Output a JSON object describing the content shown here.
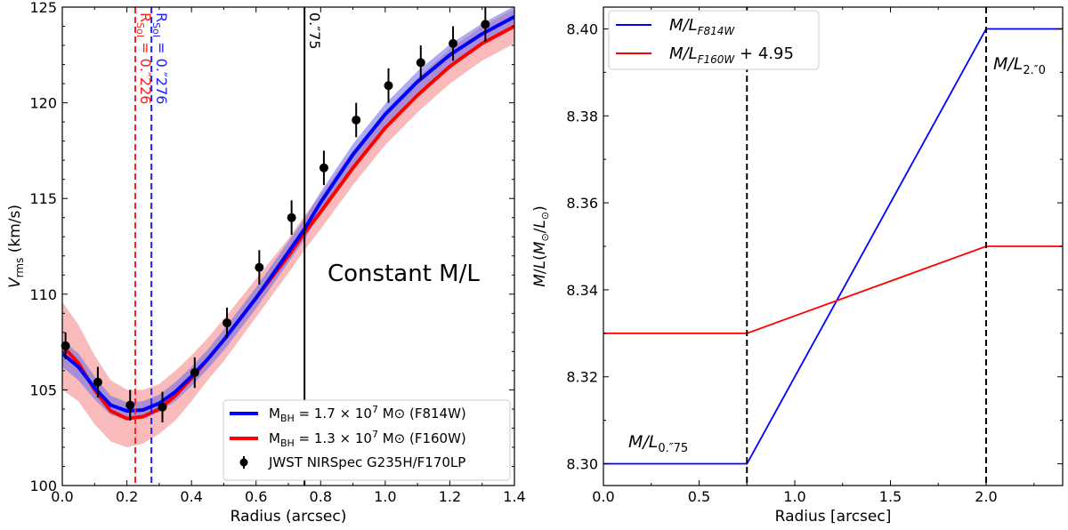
{
  "chart_data": [
    {
      "type": "line",
      "panel": "left",
      "title": "",
      "xlabel": "Radius (arcsec)",
      "ylabel": "V_rms (km/s)",
      "xlim": [
        0.0,
        1.4
      ],
      "ylim": [
        100,
        125
      ],
      "xticks": [
        "0.0",
        "0.2",
        "0.4",
        "0.6",
        "0.8",
        "1.0",
        "1.2",
        "1.4"
      ],
      "yticks": [
        "100",
        "105",
        "110",
        "115",
        "120",
        "125"
      ],
      "annotation": "Constant M/L",
      "vlines": [
        {
          "x": 0.226,
          "color": "#ff2020",
          "style": "dashed",
          "label_main": "R",
          "label_sub": "SoI",
          "label_rest": " = 0.″226"
        },
        {
          "x": 0.276,
          "color": "#2020ff",
          "style": "dashed",
          "label_main": "R",
          "label_sub": "SoI",
          "label_rest": " = 0.″276"
        },
        {
          "x": 0.75,
          "color": "#000000",
          "style": "solid",
          "label_main": "0.″75",
          "label_sub": "",
          "label_rest": ""
        }
      ],
      "series": [
        {
          "name": "F814W model",
          "color": "#0000ff",
          "band_color": "#6a6ae8",
          "x": [
            0.0,
            0.05,
            0.1,
            0.15,
            0.2,
            0.25,
            0.3,
            0.35,
            0.4,
            0.45,
            0.5,
            0.6,
            0.7,
            0.75,
            0.8,
            0.9,
            1.0,
            1.1,
            1.2,
            1.3,
            1.4
          ],
          "values": [
            106.9,
            106.2,
            105.1,
            104.2,
            103.9,
            103.95,
            104.3,
            104.9,
            105.7,
            106.6,
            107.6,
            109.8,
            112.2,
            113.4,
            114.8,
            117.3,
            119.4,
            121.1,
            122.5,
            123.6,
            124.5
          ],
          "band_halfwidth": [
            0.7,
            0.7,
            0.6,
            0.5,
            0.45,
            0.45,
            0.45,
            0.5,
            0.5,
            0.5,
            0.55,
            0.55,
            0.55,
            0.55,
            0.55,
            0.55,
            0.55,
            0.55,
            0.55,
            0.55,
            0.55
          ]
        },
        {
          "name": "F160W model",
          "color": "#ff0000",
          "band_color": "#f48c8c",
          "x": [
            0.0,
            0.05,
            0.1,
            0.15,
            0.2,
            0.25,
            0.3,
            0.35,
            0.4,
            0.45,
            0.5,
            0.6,
            0.7,
            0.75,
            0.8,
            0.9,
            1.0,
            1.1,
            1.2,
            1.3,
            1.4
          ],
          "values": [
            107.3,
            106.4,
            105.0,
            103.9,
            103.5,
            103.6,
            104.0,
            104.7,
            105.6,
            106.6,
            107.6,
            109.8,
            112.0,
            113.2,
            114.3,
            116.6,
            118.7,
            120.4,
            121.9,
            123.1,
            124.0
          ],
          "band_halfwidth": [
            2.3,
            2.0,
            1.8,
            1.6,
            1.5,
            1.4,
            1.3,
            1.3,
            1.2,
            1.1,
            1.1,
            1.0,
            0.9,
            0.9,
            0.9,
            0.9,
            0.9,
            0.9,
            0.9,
            0.9,
            0.9
          ]
        }
      ],
      "data_points": {
        "name": "JWST NIRSpec G235H/F170LP",
        "x": [
          0.01,
          0.11,
          0.21,
          0.31,
          0.41,
          0.51,
          0.61,
          0.71,
          0.81,
          0.91,
          1.01,
          1.11,
          1.21,
          1.31
        ],
        "values": [
          107.3,
          105.4,
          104.2,
          104.1,
          105.9,
          108.5,
          111.4,
          114.0,
          116.6,
          119.1,
          120.9,
          122.1,
          123.1,
          124.1
        ],
        "errors": [
          0.7,
          0.8,
          0.8,
          0.8,
          0.8,
          0.8,
          0.9,
          0.9,
          0.9,
          0.9,
          0.9,
          0.9,
          0.9,
          0.9
        ]
      },
      "legend": [
        {
          "kind": "line",
          "color": "#0000ff",
          "prefix": "M",
          "sub": "BH",
          "mid": " = 1.7 × 10",
          "sup": "7",
          "suffix": " M⊙ (F814W)"
        },
        {
          "kind": "line",
          "color": "#ff0000",
          "prefix": "M",
          "sub": "BH",
          "mid": " = 1.3 × 10",
          "sup": "7",
          "suffix": " M⊙ (F160W)"
        },
        {
          "kind": "point",
          "color": "#000000",
          "prefix": "JWST NIRSpec G235H/F170LP",
          "sub": "",
          "mid": "",
          "sup": "",
          "suffix": ""
        }
      ]
    },
    {
      "type": "line",
      "panel": "right",
      "title": "",
      "xlabel": "Radius [arcsec]",
      "ylabel": "M/L(M⊙/L⊙)",
      "xlim": [
        0.0,
        2.4
      ],
      "ylim": [
        8.295,
        8.405
      ],
      "xticks": [
        "0.0",
        "0.5",
        "1.0",
        "1.5",
        "2.0"
      ],
      "yticks": [
        "8.30",
        "8.32",
        "8.34",
        "8.36",
        "8.38",
        "8.40"
      ],
      "vlines": [
        {
          "x": 0.75,
          "color": "#000000",
          "style": "dashed"
        },
        {
          "x": 2.0,
          "color": "#000000",
          "style": "dashed"
        }
      ],
      "annotations": [
        {
          "text": "M/L",
          "sub": "0.″75",
          "at": "lower-left"
        },
        {
          "text": "M/L",
          "sub": "2.″0",
          "at": "upper-right"
        }
      ],
      "series": [
        {
          "name": "M/L F814W",
          "color": "#0000ff",
          "x": [
            0.0,
            0.75,
            2.0,
            2.4
          ],
          "values": [
            8.3,
            8.3,
            8.4,
            8.4
          ]
        },
        {
          "name": "M/L F160W + 4.95",
          "color": "#ff0000",
          "x": [
            0.0,
            0.75,
            2.0,
            2.4
          ],
          "values": [
            8.33,
            8.33,
            8.35,
            8.35
          ]
        }
      ],
      "legend": [
        {
          "color": "#0000ff",
          "text": "M/L",
          "sub": "F814W",
          "suffix": ""
        },
        {
          "color": "#ff0000",
          "text": "M/L",
          "sub": "F160W",
          "suffix": " + 4.95"
        }
      ]
    }
  ]
}
